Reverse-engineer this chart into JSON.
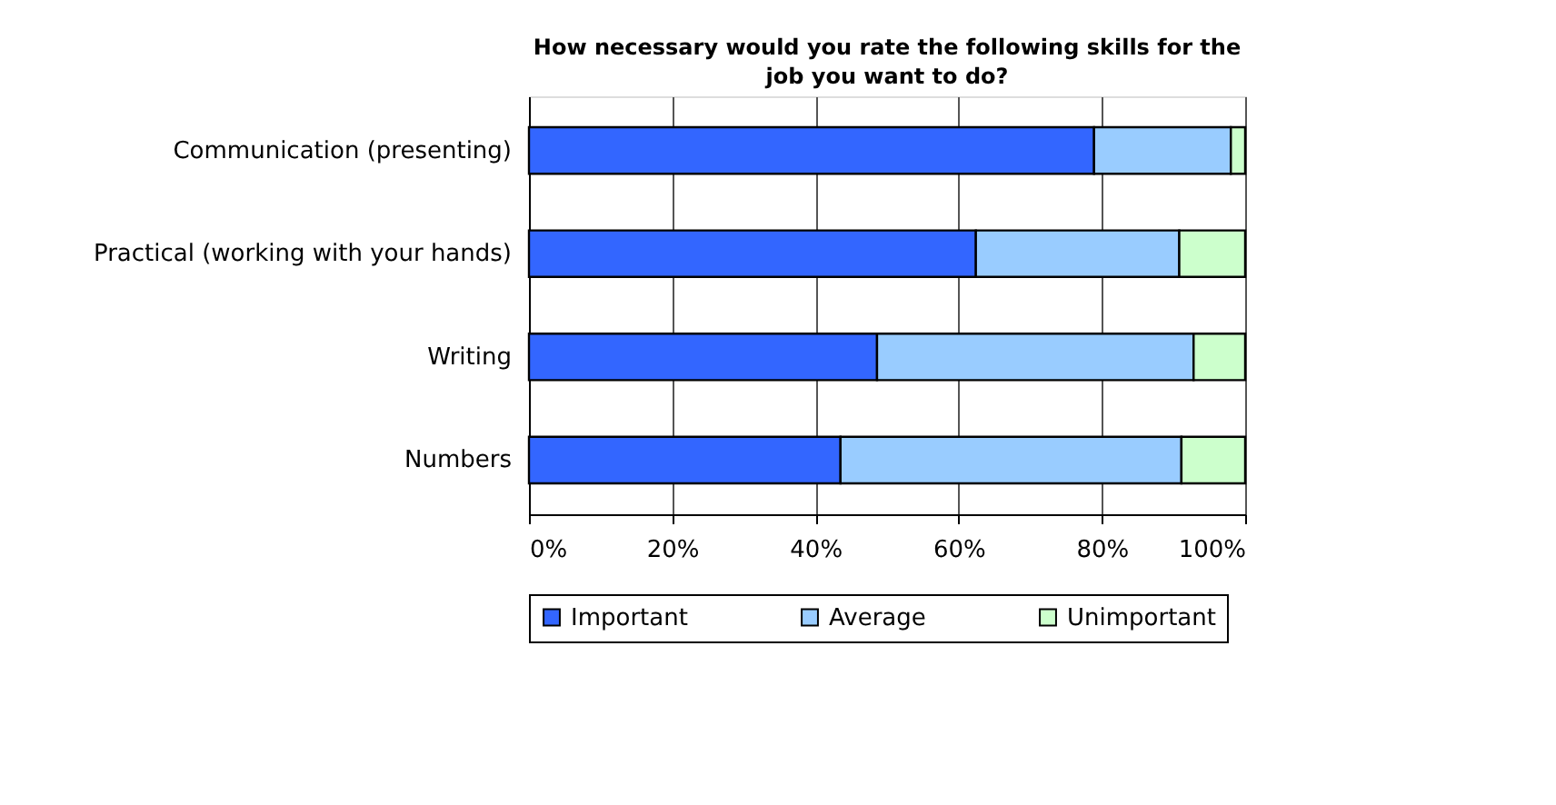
{
  "chart_data": {
    "type": "bar",
    "orientation": "horizontal",
    "stacked": true,
    "title": "How necessary would you rate the following skills for the job you want to do?",
    "categories": [
      "Communication (presenting)",
      "Practical (working with your hands)",
      "Writing",
      "Numbers"
    ],
    "series": [
      {
        "name": "Important",
        "color": "#3366ff",
        "values": [
          78.9,
          62.4,
          48.6,
          43.5
        ]
      },
      {
        "name": "Average",
        "color": "#99ccff",
        "values": [
          19.1,
          28.4,
          44.2,
          47.6
        ]
      },
      {
        "name": "Unimportant",
        "color": "#ccffcc",
        "values": [
          2.0,
          9.2,
          7.2,
          8.9
        ]
      }
    ],
    "xlim": [
      0,
      100
    ],
    "xticks": [
      {
        "value": 0,
        "label": "0%"
      },
      {
        "value": 20,
        "label": "20%"
      },
      {
        "value": 40,
        "label": "40%"
      },
      {
        "value": 60,
        "label": "60%"
      },
      {
        "value": 80,
        "label": "80%"
      },
      {
        "value": 100,
        "label": "100%"
      }
    ],
    "grid": "x",
    "legend": "bottom"
  }
}
